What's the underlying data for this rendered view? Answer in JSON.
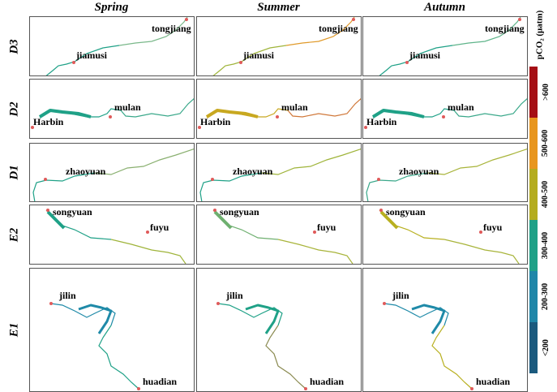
{
  "seasons": [
    "Spring",
    "Summer",
    "Autumn"
  ],
  "rows": [
    {
      "label": "D3",
      "cities": [
        "jiamusi",
        "tongjiang"
      ],
      "colors": [
        [
          "#1fa187",
          "#7ab88a"
        ],
        [
          "#9fb43a",
          "#e09a2a"
        ],
        [
          "#1fa187",
          "#5fb48a"
        ]
      ]
    },
    {
      "label": "D2",
      "cities": [
        "Harbin",
        "mulan"
      ],
      "colors": [
        [
          "#1fa187",
          "#3aa88a"
        ],
        [
          "#c8a820",
          "#d0783a"
        ],
        [
          "#1fa187",
          "#3aa88a"
        ]
      ]
    },
    {
      "label": "D1",
      "cities": [
        "zhaoyuan"
      ],
      "colors": [
        [
          "#1fa187",
          "#8ab070"
        ],
        [
          "#1fa187",
          "#9fb43a"
        ],
        [
          "#3aa88a",
          "#a8b43a"
        ]
      ]
    },
    {
      "label": "E2",
      "cities": [
        "songyuan",
        "fuyu"
      ],
      "colors": [
        [
          "#1fa187",
          "#9fb43a"
        ],
        [
          "#6fb070",
          "#a8b43a"
        ],
        [
          "#b8b020",
          "#a8b43a"
        ]
      ]
    },
    {
      "label": "E1",
      "cities": [
        "jilin",
        "huadian"
      ],
      "colors": [
        [
          "#1f8aa8",
          "#1fa187"
        ],
        [
          "#1fa187",
          "#8a8a50"
        ],
        [
          "#1f8aa8",
          "#b8b020"
        ]
      ]
    }
  ],
  "legend": {
    "title": "pCO₂ (μatm)",
    "bins": [
      {
        "label": ">600",
        "color": "#a50f15"
      },
      {
        "label": "500-600",
        "color": "#e8961e"
      },
      {
        "label": "400-500",
        "color": "#b4ac1e"
      },
      {
        "label": "300-400",
        "color": "#1fa187"
      },
      {
        "label": "200-300",
        "color": "#1f86a8"
      },
      {
        "label": "<200",
        "color": "#1b5a7e"
      }
    ]
  },
  "marker_color": "#e05a5a"
}
